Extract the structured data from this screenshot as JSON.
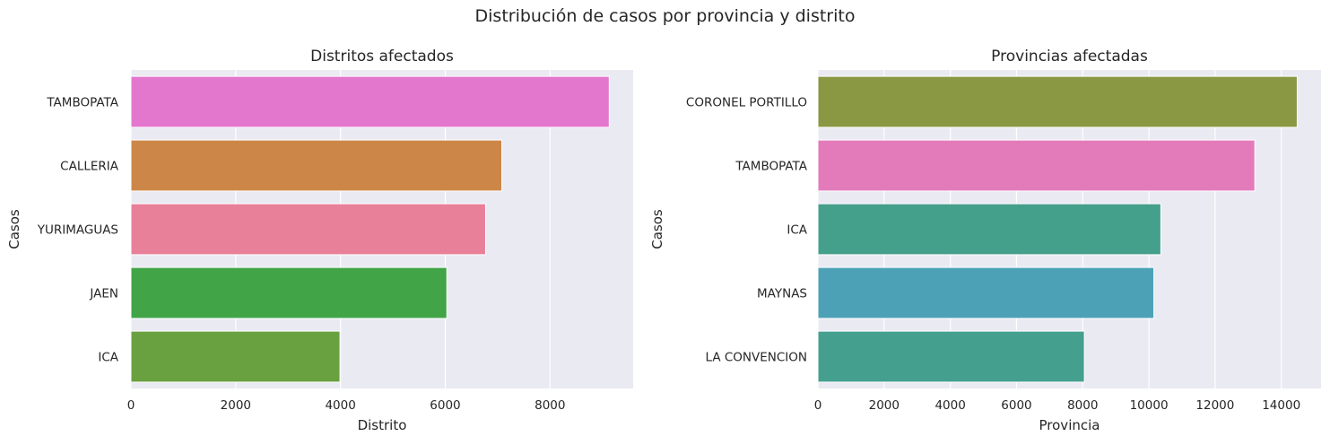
{
  "figure": {
    "suptitle": "Distribución de casos por provincia y distrito"
  },
  "chart_data": [
    {
      "type": "bar",
      "orientation": "horizontal",
      "title": "Distritos afectados",
      "xlabel": "Distrito",
      "ylabel": "Casos",
      "categories": [
        "TAMBOPATA",
        "CALLERIA",
        "YURIMAGUAS",
        "JAEN",
        "ICA"
      ],
      "values": [
        9130,
        7080,
        6770,
        6030,
        3990
      ],
      "colors": [
        "#e377cd",
        "#cc8748",
        "#e98099",
        "#41a447",
        "#69a040"
      ],
      "xlim": [
        0,
        9587
      ],
      "xticks": [
        0,
        2000,
        4000,
        6000,
        8000
      ],
      "grid": true
    },
    {
      "type": "bar",
      "orientation": "horizontal",
      "title": "Provincias afectadas",
      "xlabel": "Provincia",
      "ylabel": "Casos",
      "categories": [
        "CORONEL PORTILLO",
        "TAMBOPATA",
        "ICA",
        "MAYNAS",
        "LA CONVENCION"
      ],
      "values": [
        14480,
        13200,
        10360,
        10150,
        8050
      ],
      "colors": [
        "#8a9743",
        "#e37bbb",
        "#449f8b",
        "#4ca1b7",
        "#449f8e"
      ],
      "xlim": [
        0,
        15200
      ],
      "xticks": [
        0,
        2000,
        4000,
        6000,
        8000,
        10000,
        12000,
        14000
      ],
      "grid": true
    }
  ]
}
